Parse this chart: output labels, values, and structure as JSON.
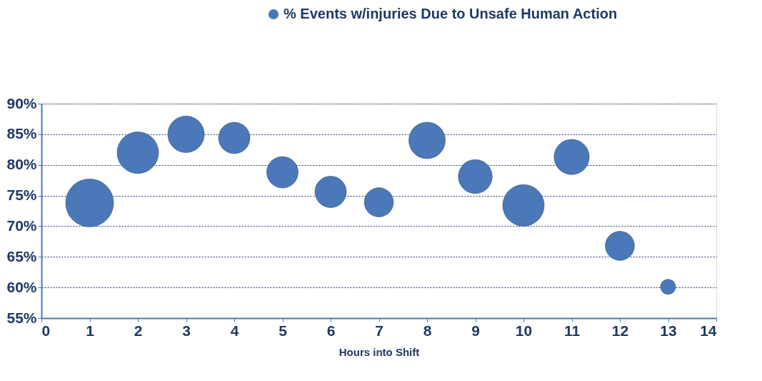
{
  "chart_data": {
    "type": "bubble",
    "xlabel": "Hours into Shift",
    "x": [
      1,
      2,
      3,
      4,
      5,
      6,
      7,
      8,
      9,
      10,
      11,
      12,
      13
    ],
    "series": [
      {
        "name": "% Events w/injuries Due to Unsafe Human Action",
        "color": "#4a78b8",
        "values": [
          73.8,
          82.0,
          85.0,
          84.4,
          78.8,
          75.6,
          73.9,
          84.0,
          78.1,
          73.4,
          81.3,
          66.8,
          60.1
        ],
        "sizes": [
          1,
          0.75,
          0.58,
          0.43,
          0.43,
          0.43,
          0.37,
          0.58,
          0.5,
          0.75,
          0.54,
          0.37,
          0.1
        ]
      }
    ],
    "xlim": [
      0,
      14
    ],
    "xticks": [
      0,
      1,
      2,
      3,
      4,
      5,
      6,
      7,
      8,
      9,
      10,
      11,
      12,
      13,
      14
    ],
    "ylim": [
      55,
      90
    ],
    "yticks": [
      {
        "value": 55,
        "label": "55%"
      },
      {
        "value": 60,
        "label": "60%"
      },
      {
        "value": 65,
        "label": "65%"
      },
      {
        "value": 70,
        "label": "70%"
      },
      {
        "value": 75,
        "label": "75%"
      },
      {
        "value": 80,
        "label": "80%"
      },
      {
        "value": 85,
        "label": "85%"
      },
      {
        "value": 90,
        "label": "90%"
      }
    ],
    "grid": "y",
    "legend": "top right"
  }
}
